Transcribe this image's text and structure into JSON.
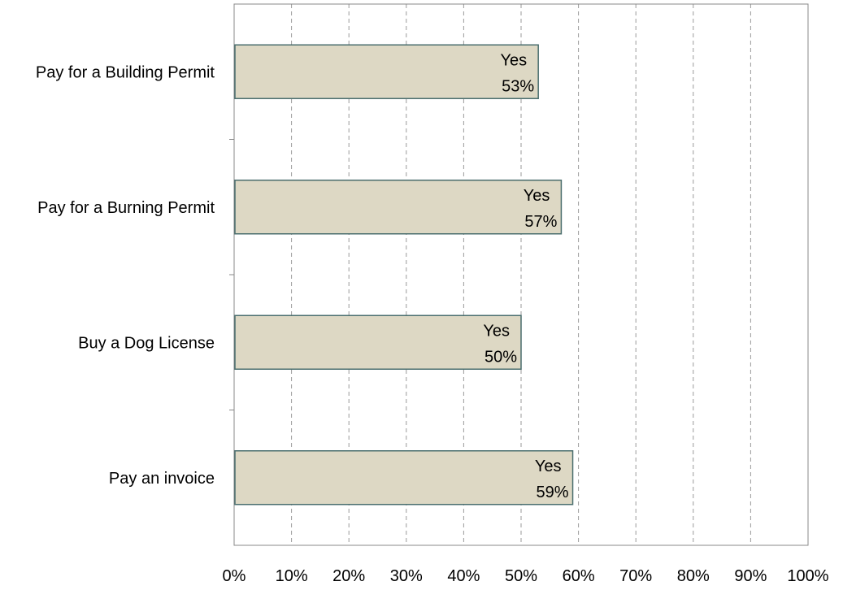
{
  "chart_data": {
    "type": "bar",
    "orientation": "horizontal",
    "categories": [
      "Pay for a Building Permit",
      "Pay for a Burning Permit",
      "Buy a Dog License",
      "Pay an invoice"
    ],
    "series": [
      {
        "name": "Yes",
        "values": [
          53,
          57,
          50,
          59
        ]
      }
    ],
    "data_labels": [
      "53%",
      "57%",
      "50%",
      "59%"
    ],
    "xlim": [
      0,
      100
    ],
    "x_ticks": [
      "0%",
      "10%",
      "20%",
      "30%",
      "40%",
      "50%",
      "60%",
      "70%",
      "80%",
      "90%",
      "100%"
    ],
    "grid": "vertical dashed",
    "legend": "none",
    "colors": {
      "bar_fill": "#ddd8c4",
      "bar_stroke": "#4a6e6e",
      "grid": "#9a9a9a",
      "axis": "#888888"
    }
  }
}
